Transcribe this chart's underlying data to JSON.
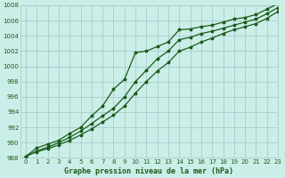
{
  "title": "Graphe pression niveau de la mer (hPa)",
  "bg_color": "#cceee8",
  "grid_color": "#aacccc",
  "line_color": "#1a5c1a",
  "xlim": [
    -0.5,
    23
  ],
  "ylim": [
    988,
    1008
  ],
  "xticks": [
    0,
    1,
    2,
    3,
    4,
    5,
    6,
    7,
    8,
    9,
    10,
    11,
    12,
    13,
    14,
    15,
    16,
    17,
    18,
    19,
    20,
    21,
    22,
    23
  ],
  "yticks": [
    988,
    990,
    992,
    994,
    996,
    998,
    1000,
    1002,
    1004,
    1006,
    1008
  ],
  "line1_x": [
    0,
    1,
    2,
    3,
    4,
    5,
    6,
    7,
    8,
    9,
    10,
    11,
    12,
    13,
    14,
    15,
    16,
    17,
    18,
    19,
    20,
    21,
    22,
    23
  ],
  "line1_y": [
    988.2,
    989.3,
    989.8,
    990.3,
    991.2,
    992.0,
    993.5,
    994.8,
    997.0,
    998.3,
    1001.8,
    1002.0,
    1002.6,
    1003.2,
    1004.8,
    1004.9,
    1005.2,
    1005.4,
    1005.8,
    1006.2,
    1006.4,
    1006.8,
    1007.5,
    1008.2
  ],
  "line2_x": [
    0,
    1,
    2,
    3,
    4,
    5,
    6,
    7,
    8,
    9,
    10,
    11,
    12,
    13,
    14,
    15,
    16,
    17,
    18,
    19,
    20,
    21,
    22,
    23
  ],
  "line2_y": [
    988.2,
    988.9,
    989.4,
    990.0,
    990.7,
    991.5,
    992.5,
    993.5,
    994.5,
    996.0,
    998.0,
    999.5,
    1001.0,
    1002.0,
    1003.5,
    1003.8,
    1004.3,
    1004.6,
    1005.0,
    1005.4,
    1005.8,
    1006.2,
    1006.9,
    1007.7
  ],
  "line3_x": [
    0,
    1,
    2,
    3,
    4,
    5,
    6,
    7,
    8,
    9,
    10,
    11,
    12,
    13,
    14,
    15,
    16,
    17,
    18,
    19,
    20,
    21,
    22,
    23
  ],
  "line3_y": [
    988.2,
    988.8,
    989.2,
    989.7,
    990.3,
    991.0,
    991.8,
    992.7,
    993.6,
    994.8,
    996.5,
    998.0,
    999.4,
    1000.5,
    1002.0,
    1002.5,
    1003.2,
    1003.7,
    1004.3,
    1004.8,
    1005.2,
    1005.6,
    1006.3,
    1007.2
  ]
}
